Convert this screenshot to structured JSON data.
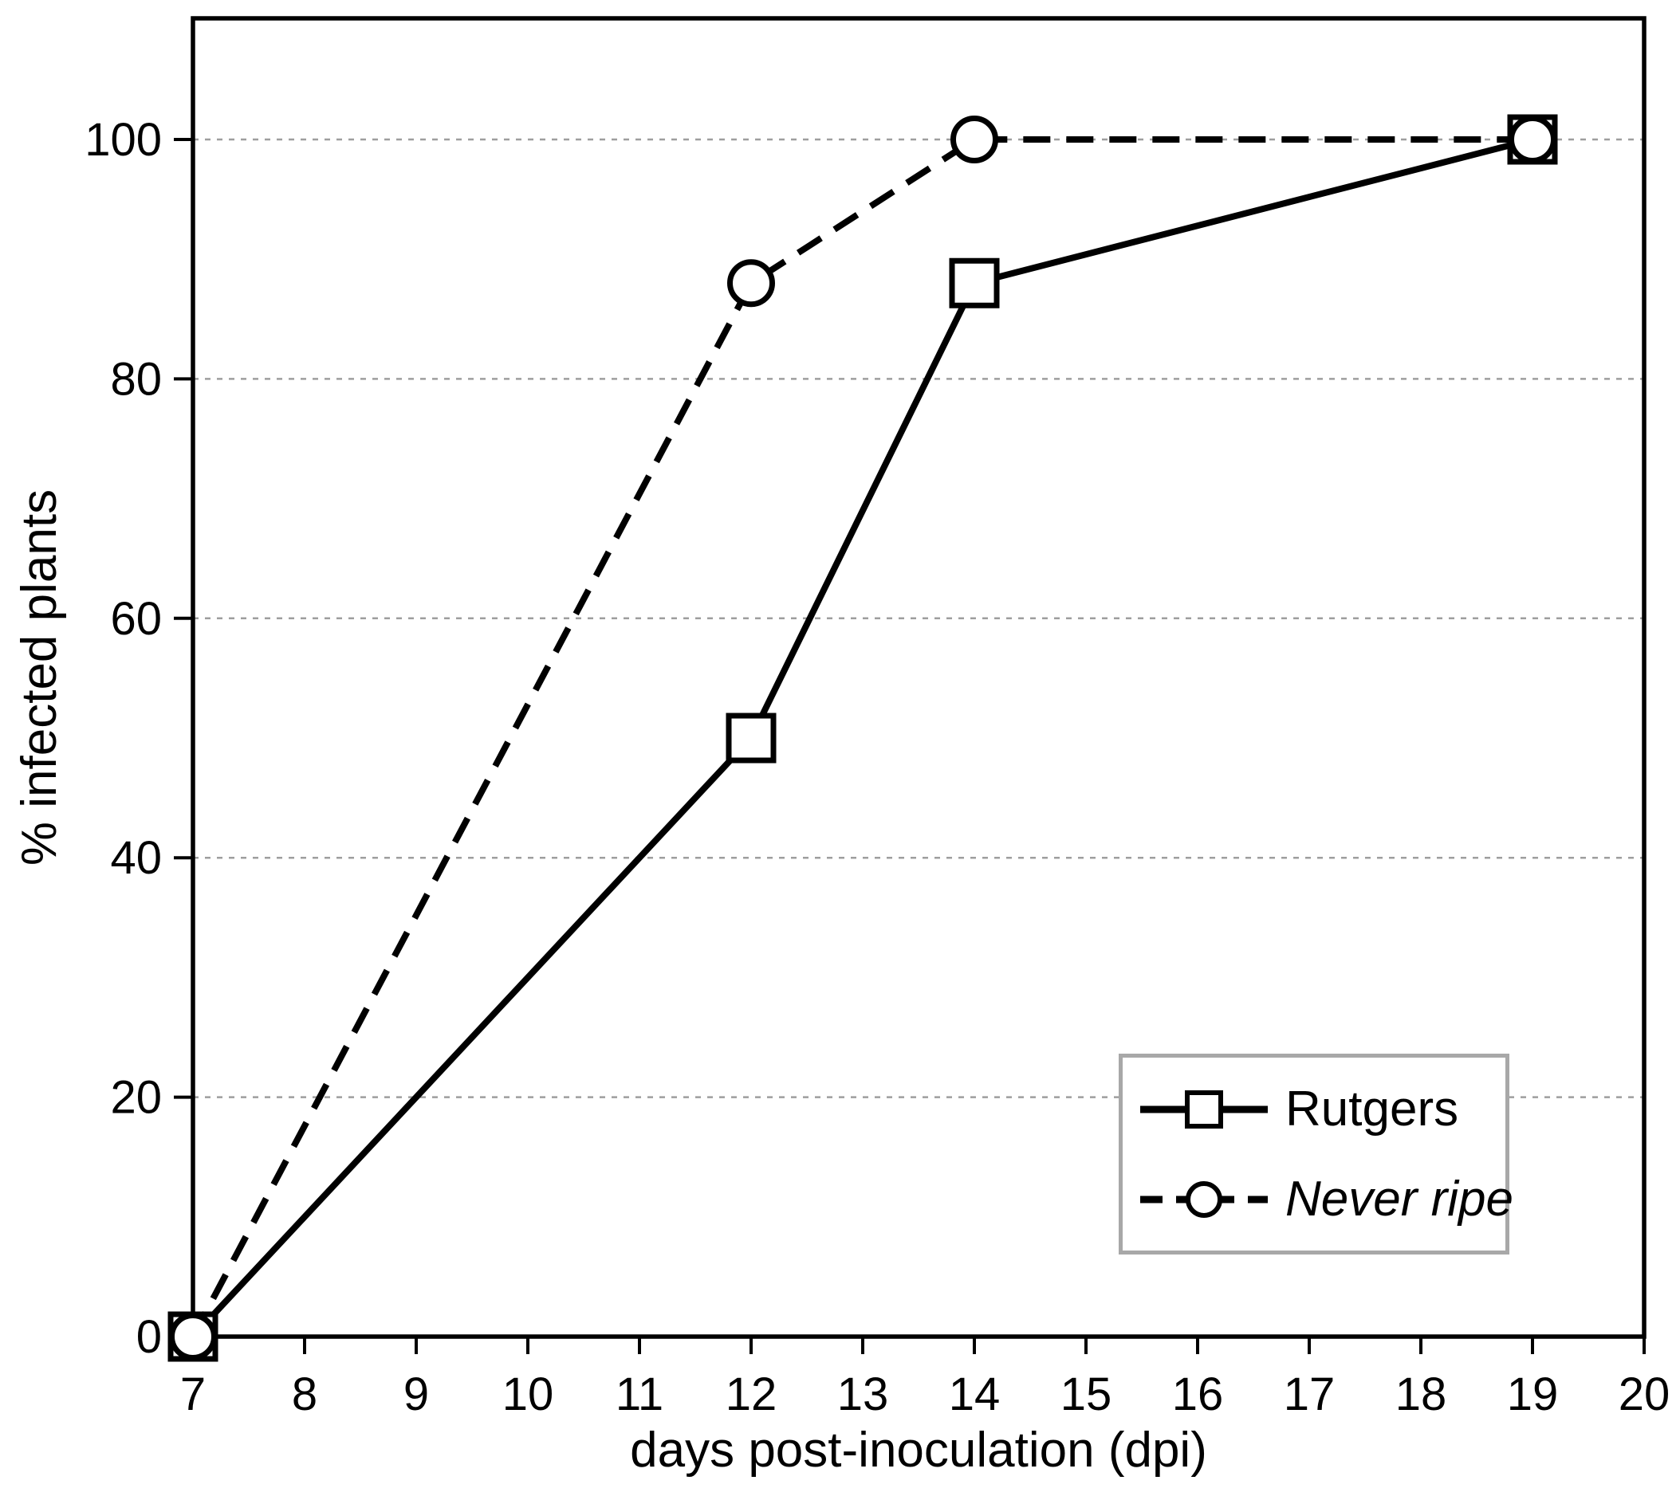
{
  "chart_data": {
    "type": "line",
    "title": "",
    "xlabel": "days post-inoculation (dpi)",
    "ylabel": "% infected plants",
    "xlim": [
      7,
      20
    ],
    "ylim": [
      0,
      110
    ],
    "x_ticks": [
      7,
      8,
      9,
      10,
      11,
      12,
      13,
      14,
      15,
      16,
      17,
      18,
      19,
      20
    ],
    "y_ticks": [
      0,
      20,
      40,
      60,
      80,
      100
    ],
    "grid": {
      "axis": "y",
      "values": [
        20,
        40,
        60,
        80,
        100
      ],
      "style": "dotted"
    },
    "series": [
      {
        "name": "Rutgers",
        "marker": "square",
        "line_style": "solid",
        "points": [
          [
            7,
            0
          ],
          [
            12,
            50
          ],
          [
            14,
            88
          ],
          [
            19,
            100
          ]
        ]
      },
      {
        "name": "Never ripe",
        "marker": "circle",
        "line_style": "dashed",
        "points": [
          [
            7,
            0
          ],
          [
            12,
            88
          ],
          [
            14,
            100
          ],
          [
            19,
            100
          ]
        ]
      }
    ],
    "legend": {
      "position": "bottom-right",
      "entries": [
        "Rutgers",
        "Never ripe"
      ]
    }
  },
  "colors": {
    "ink": "#000000",
    "background": "#ffffff",
    "gridline": "#9e9e9e",
    "legend_border": "#a8a8a8"
  }
}
